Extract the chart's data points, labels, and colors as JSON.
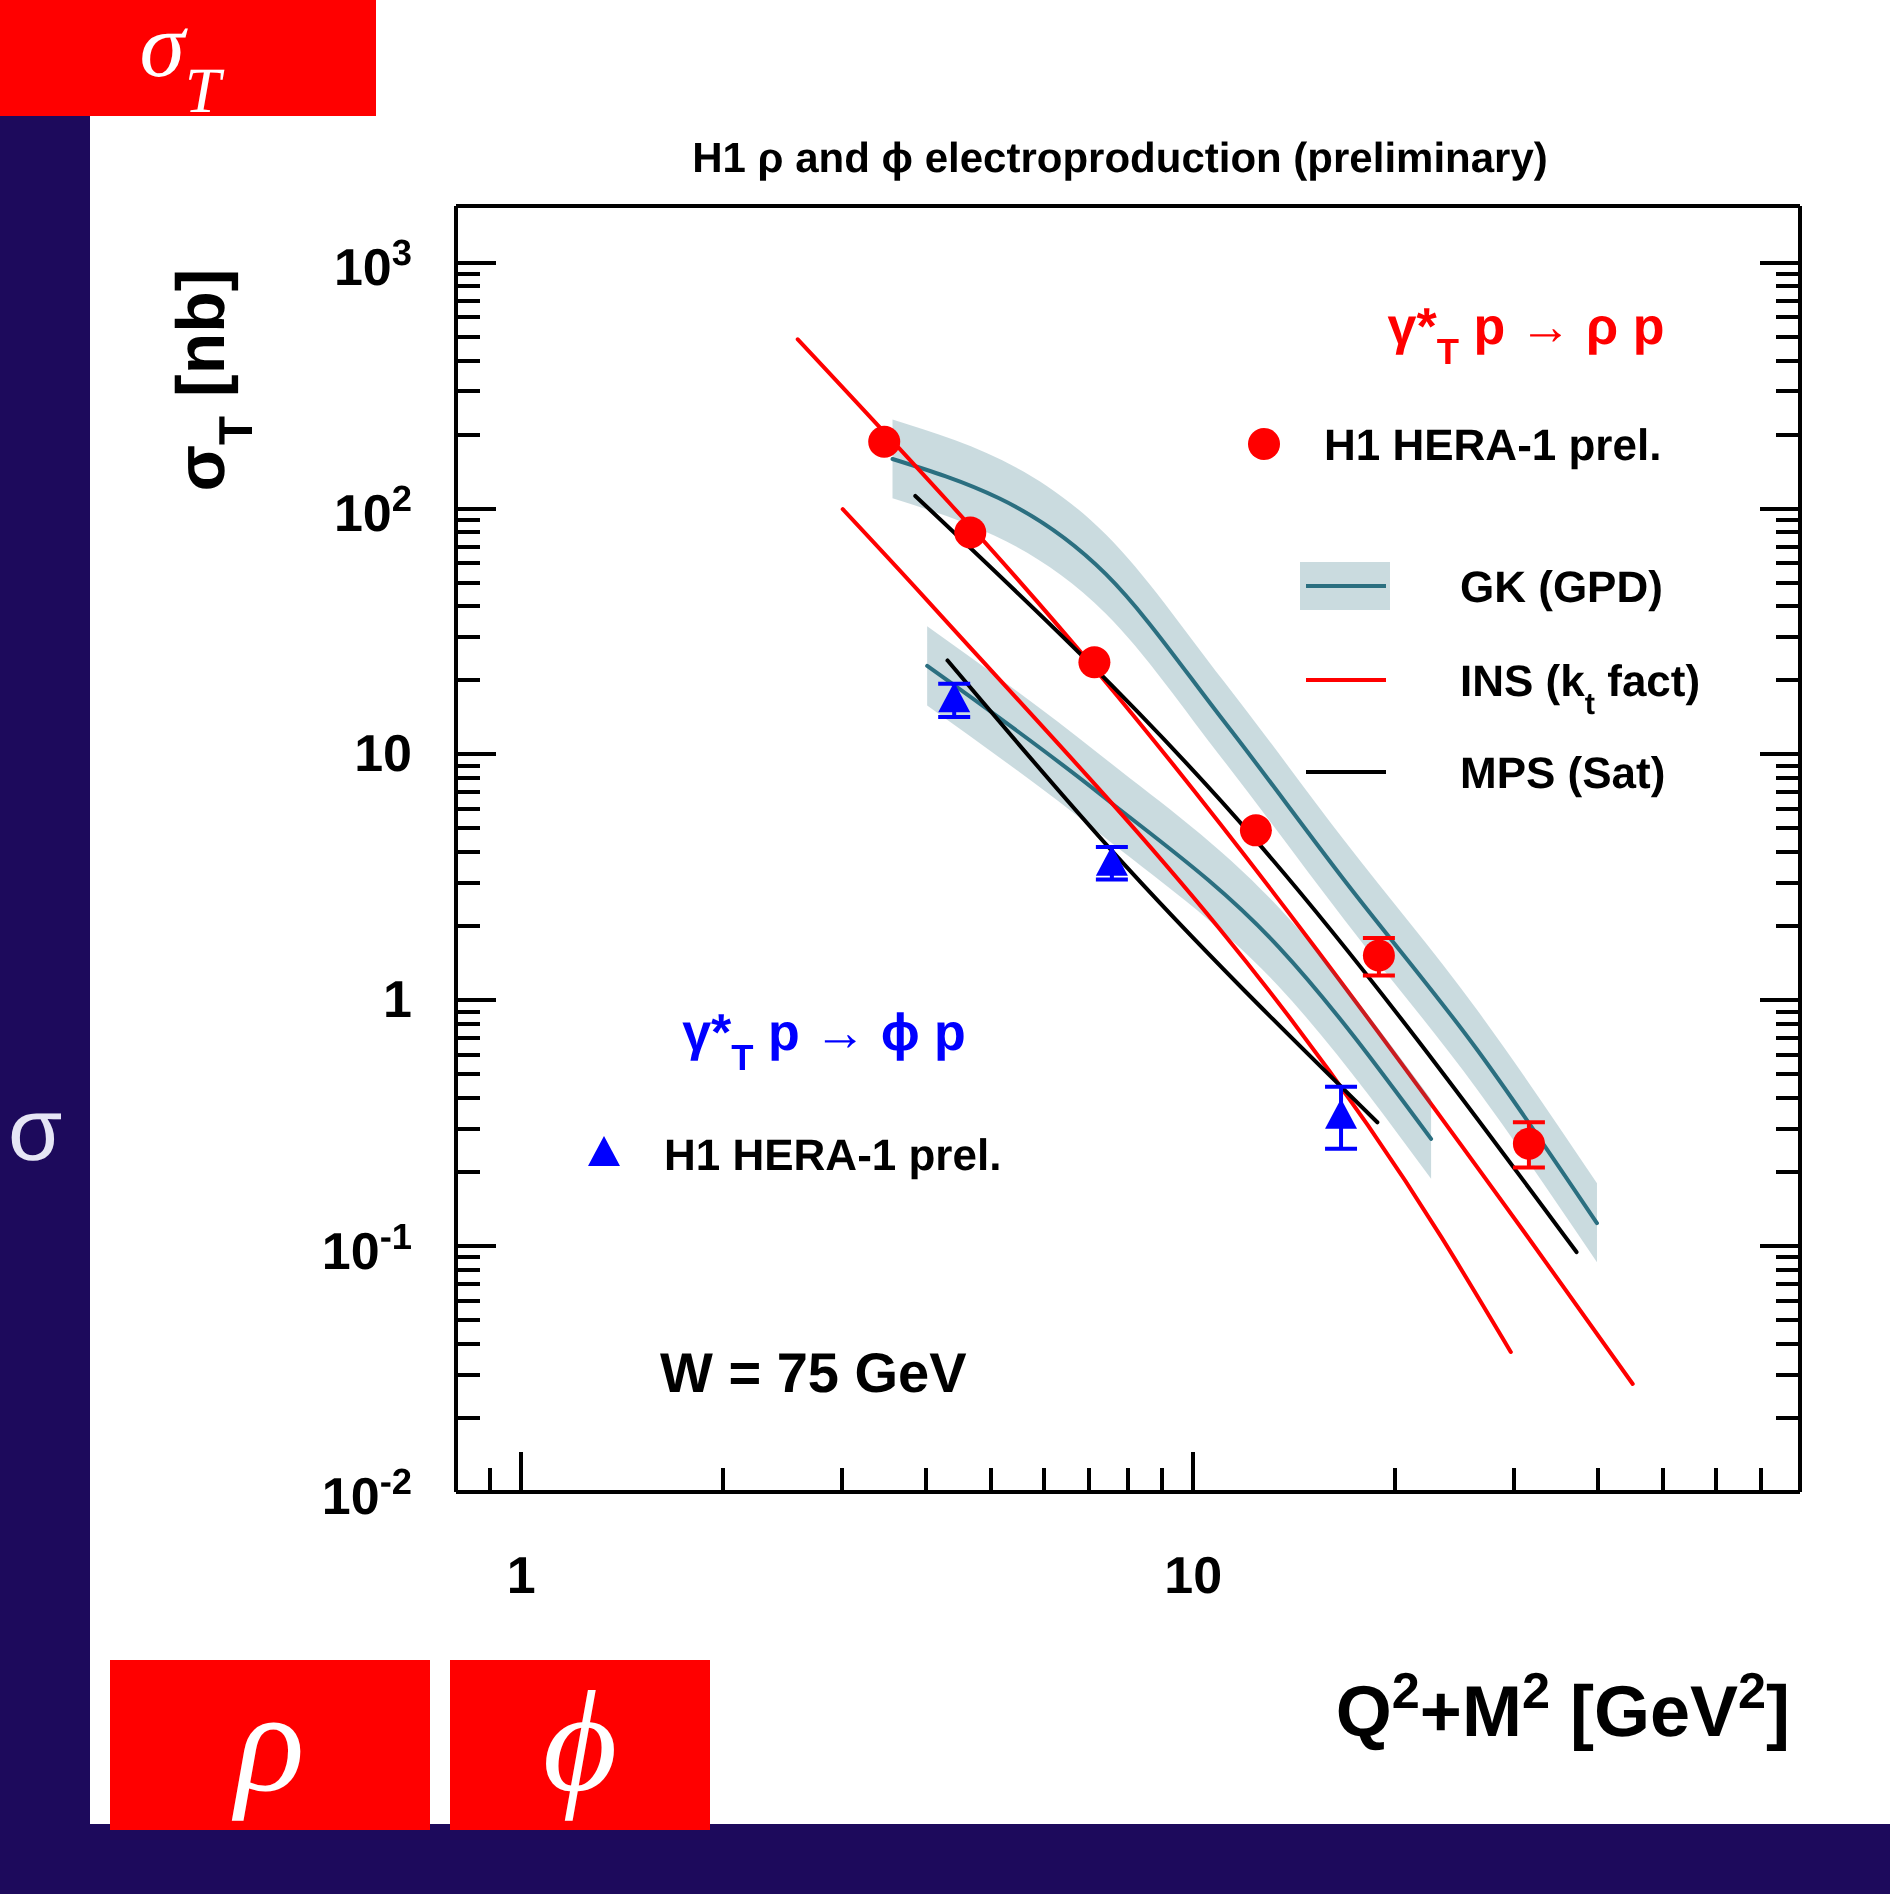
{
  "chart_data": {
    "type": "scatter",
    "title": "H1 ρ and ϕ electroproduction (preliminary)",
    "xlabel": "Q$^{2}$+M$^{2}$ [GeV$^{2}$]",
    "ylabel": "σ$_{T}$ [nb]",
    "log": "xy",
    "legend": "top right",
    "grid": false,
    "xlim": [
      0.8,
      80
    ],
    "ylim": [
      0.01,
      1700
    ],
    "xticks": [
      {
        "value": 0.9,
        "label": null
      },
      1,
      {
        "value": 2,
        "label": null
      },
      {
        "value": 3,
        "label": null
      },
      {
        "value": 4,
        "label": null
      },
      {
        "value": 5,
        "label": null
      },
      {
        "value": 6,
        "label": null
      },
      {
        "value": 7,
        "label": null
      },
      {
        "value": 8,
        "label": null
      },
      {
        "value": 9,
        "label": null
      },
      10,
      {
        "value": 20,
        "label": null
      },
      {
        "value": 30,
        "label": null
      },
      {
        "value": 40,
        "label": null
      },
      {
        "value": 50,
        "label": null
      },
      {
        "value": 60,
        "label": null
      },
      {
        "value": 70,
        "label": null
      }
    ],
    "yticks": [
      {
        "value": 0.01,
        "label": "10$^{-2}$"
      },
      {
        "value": 0.02,
        "label": null
      },
      {
        "value": 0.03,
        "label": null
      },
      {
        "value": 0.04,
        "label": null
      },
      {
        "value": 0.05,
        "label": null
      },
      {
        "value": 0.06,
        "label": null
      },
      {
        "value": 0.07,
        "label": null
      },
      {
        "value": 0.08,
        "label": null
      },
      {
        "value": 0.09,
        "label": null
      },
      {
        "value": 0.1,
        "label": "10$^{-1}$"
      },
      {
        "value": 0.2,
        "label": null
      },
      {
        "value": 0.3,
        "label": null
      },
      {
        "value": 0.4,
        "label": null
      },
      {
        "value": 0.5,
        "label": null
      },
      {
        "value": 0.6,
        "label": null
      },
      {
        "value": 0.7,
        "label": null
      },
      {
        "value": 0.8,
        "label": null
      },
      {
        "value": 0.9,
        "label": null
      },
      1,
      {
        "value": 2,
        "label": null
      },
      {
        "value": 3,
        "label": null
      },
      {
        "value": 4,
        "label": null
      },
      {
        "value": 5,
        "label": null
      },
      {
        "value": 6,
        "label": null
      },
      {
        "value": 7,
        "label": null
      },
      {
        "value": 8,
        "label": null
      },
      {
        "value": 9,
        "label": null
      },
      10,
      {
        "value": 20,
        "label": null
      },
      {
        "value": 30,
        "label": null
      },
      {
        "value": 40,
        "label": null
      },
      {
        "value": 50,
        "label": null
      },
      {
        "value": 60,
        "label": null
      },
      {
        "value": 70,
        "label": null
      },
      {
        "value": 80,
        "label": null
      },
      {
        "value": 90,
        "label": null
      },
      {
        "value": 100,
        "label": "10$^{2}$"
      },
      {
        "value": 200,
        "label": null
      },
      {
        "value": 300,
        "label": null
      },
      {
        "value": 400,
        "label": null
      },
      {
        "value": 500,
        "label": null
      },
      {
        "value": 600,
        "label": null
      },
      {
        "value": 700,
        "label": null
      },
      {
        "value": 800,
        "label": null
      },
      {
        "value": 900,
        "label": null
      },
      {
        "value": 1000,
        "label": "10$^{3}$"
      }
    ],
    "series": [
      {
        "type": "scatter",
        "name": "H1 HERA-1 prel.",
        "color": "#ff0000",
        "marker": "circle",
        "x": [
          3.47,
          4.66,
          7.13,
          12.4,
          18.9,
          31.6
        ],
        "values": [
          187,
          79.9,
          23.7,
          4.91,
          1.52,
          0.261
        ],
        "errors": [
          null,
          null,
          null,
          null,
          [
            1.26,
            1.79
          ],
          [
            0.209,
            0.319
          ]
        ]
      },
      {
        "type": "scatter",
        "name": "H1 HERA-1 prel.",
        "color": "#0000ff",
        "marker": "triangle",
        "x": [
          4.41,
          7.57,
          16.6
        ],
        "values": [
          16.6,
          3.59,
          0.336
        ],
        "errors": [
          [
            14.2,
            19.4
          ],
          [
            3.1,
            4.2
          ],
          [
            0.249,
            0.445
          ]
        ]
      },
      {
        "type": "line",
        "name": "GK (GPD)",
        "color": "#2b6f80",
        "x": [
          3.57,
          7.41,
          11.1,
          16.8,
          26.5,
          39.9
        ],
        "values": [
          159,
          54.2,
          13.7,
          3.07,
          0.626,
          0.124
        ],
        "lower": [
          110,
          37.4,
          9.45,
          2.12,
          0.432,
          0.086
        ],
        "upper": [
          230,
          78.6,
          19.9,
          4.45,
          0.908,
          0.18
        ]
      },
      {
        "type": "line",
        "name": "INS (k$_{t}$ fact)",
        "color": "#ff0000",
        "x": [
          2.58,
          7.26,
          31.4,
          45.1
        ],
        "values": [
          488,
          21.1,
          0.11,
          0.0275
        ]
      },
      {
        "type": "line",
        "name": "MPS (Sat)",
        "color": "#000000",
        "x": [
          3.86,
          12.4,
          37.2
        ],
        "values": [
          112.5,
          4.47,
          0.0946
        ]
      },
      {
        "type": "line",
        "color": "#2b6f80",
        "x": [
          4.02,
          7.26,
          13.4,
          22.6
        ],
        "values": [
          22.9,
          6.92,
          1.65,
          0.273
        ],
        "lower": [
          15.8,
          4.77,
          1.14,
          0.188
        ],
        "upper": [
          33.2,
          10.0,
          2.39,
          0.396
        ]
      },
      {
        "type": "line",
        "color": "#ff0000",
        "x": [
          3.01,
          4.02,
          23.4,
          29.7
        ],
        "values": [
          99.4,
          42.3,
          0.109,
          0.0371
        ]
      },
      {
        "type": "line",
        "color": "#000000",
        "x": [
          4.31,
          7.56,
          18.8
        ],
        "values": [
          24.1,
          4.07,
          0.319
        ]
      }
    ],
    "annotations": [
      "γ*$_{T}$ p → ρ p",
      "γ*$_{T}$ p → ϕ p",
      "W = 75 GeV",
      "σ$_{T}$",
      "ρ",
      "ϕ",
      "σ"
    ]
  }
}
